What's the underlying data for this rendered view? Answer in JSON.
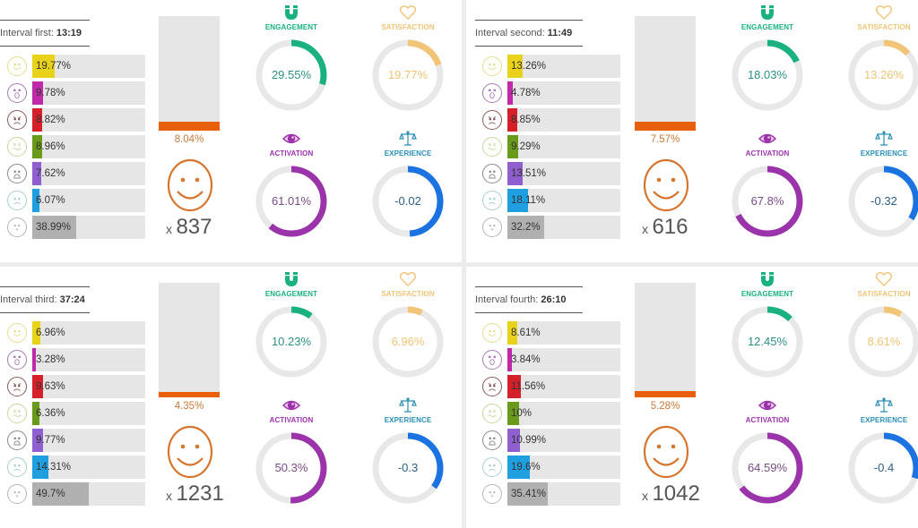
{
  "colors": {
    "emotions": [
      "#e9d21a",
      "#c02aa8",
      "#d5202a",
      "#6a9a1c",
      "#8f5fcf",
      "#1f9ee0",
      "#b0b0b0"
    ],
    "emotion_outlines": [
      "#e8dd8e",
      "#a77bb8",
      "#8a5a5a",
      "#c5d79a",
      "#8a8a8a",
      "#a9cfd2",
      "#b5b5b5"
    ],
    "engagement": "#19b180",
    "satisfaction": "#f2c477",
    "activation": "#9b33aa",
    "experience": "#1a73e0",
    "track": "#e8e8e8",
    "orange": "#e8600c",
    "smile": "#d6752d"
  },
  "emotion_icons": [
    "happy-face-icon",
    "surprised-face-icon",
    "angry-face-icon",
    "disgusted-face-icon",
    "fearful-face-icon",
    "sad-face-icon",
    "neutral-face-icon"
  ],
  "metric_labels": {
    "engagement": "ENGAGEMENT",
    "satisfaction": "SATISFACTION",
    "activation": "ACTIVATION",
    "experience": "EXPERIENCE"
  },
  "intervals": [
    {
      "label": "Interval first:",
      "time": "13:19",
      "emotions": [
        {
          "value": 19.77,
          "text": "19.77%"
        },
        {
          "value": 9.78,
          "text": "9.78%"
        },
        {
          "value": 8.82,
          "text": "8.82%"
        },
        {
          "value": 8.96,
          "text": "8.96%"
        },
        {
          "value": 7.62,
          "text": "7.62%"
        },
        {
          "value": 6.07,
          "text": "6.07%"
        },
        {
          "value": 38.99,
          "text": "38.99%"
        }
      ],
      "bar": {
        "value": 8.04,
        "text": "8.04%"
      },
      "count_prefix": "x",
      "count": "837",
      "engagement": {
        "value": 29.55,
        "text": "29.55%"
      },
      "satisfaction": {
        "value": 19.77,
        "text": "19.77%"
      },
      "activation": {
        "value": 61.01,
        "text": "61.01%"
      },
      "experience": {
        "value": -0.02,
        "text": "-0.02"
      }
    },
    {
      "label": "Interval second:",
      "time": "11:49",
      "emotions": [
        {
          "value": 13.26,
          "text": "13.26%"
        },
        {
          "value": 4.78,
          "text": "4.78%"
        },
        {
          "value": 8.85,
          "text": "8.85%"
        },
        {
          "value": 9.29,
          "text": "9.29%"
        },
        {
          "value": 13.51,
          "text": "13.51%"
        },
        {
          "value": 18.11,
          "text": "18.11%"
        },
        {
          "value": 32.2,
          "text": "32.2%"
        }
      ],
      "bar": {
        "value": 7.57,
        "text": "7.57%"
      },
      "count_prefix": "x",
      "count": "616",
      "engagement": {
        "value": 18.03,
        "text": "18.03%"
      },
      "satisfaction": {
        "value": 13.26,
        "text": "13.26%"
      },
      "activation": {
        "value": 67.8,
        "text": "67.8%"
      },
      "experience": {
        "value": -0.32,
        "text": "-0.32"
      }
    },
    {
      "label": "Interval third:",
      "time": "37:24",
      "emotions": [
        {
          "value": 6.96,
          "text": "6.96%"
        },
        {
          "value": 3.28,
          "text": "3.28%"
        },
        {
          "value": 9.63,
          "text": "9.63%"
        },
        {
          "value": 6.36,
          "text": "6.36%"
        },
        {
          "value": 9.77,
          "text": "9.77%"
        },
        {
          "value": 14.31,
          "text": "14.31%"
        },
        {
          "value": 49.7,
          "text": "49.7%"
        }
      ],
      "bar": {
        "value": 4.35,
        "text": "4.35%"
      },
      "count_prefix": "x",
      "count": "1231",
      "engagement": {
        "value": 10.23,
        "text": "10.23%"
      },
      "satisfaction": {
        "value": 6.96,
        "text": "6.96%"
      },
      "activation": {
        "value": 50.3,
        "text": "50.3%"
      },
      "experience": {
        "value": -0.3,
        "text": "-0.3"
      }
    },
    {
      "label": "Interval fourth:",
      "time": "26:10",
      "emotions": [
        {
          "value": 8.61,
          "text": "8.61%"
        },
        {
          "value": 3.84,
          "text": "3.84%"
        },
        {
          "value": 11.56,
          "text": "11.56%"
        },
        {
          "value": 10,
          "text": "10%"
        },
        {
          "value": 10.99,
          "text": "10.99%"
        },
        {
          "value": 19.6,
          "text": "19.6%"
        },
        {
          "value": 35.41,
          "text": "35.41%"
        }
      ],
      "bar": {
        "value": 5.28,
        "text": "5.28%"
      },
      "count_prefix": "x",
      "count": "1042",
      "engagement": {
        "value": 12.45,
        "text": "12.45%"
      },
      "satisfaction": {
        "value": 8.61,
        "text": "8.61%"
      },
      "activation": {
        "value": 64.59,
        "text": "64.59%"
      },
      "experience": {
        "value": -0.4,
        "text": "-0.4"
      }
    }
  ]
}
